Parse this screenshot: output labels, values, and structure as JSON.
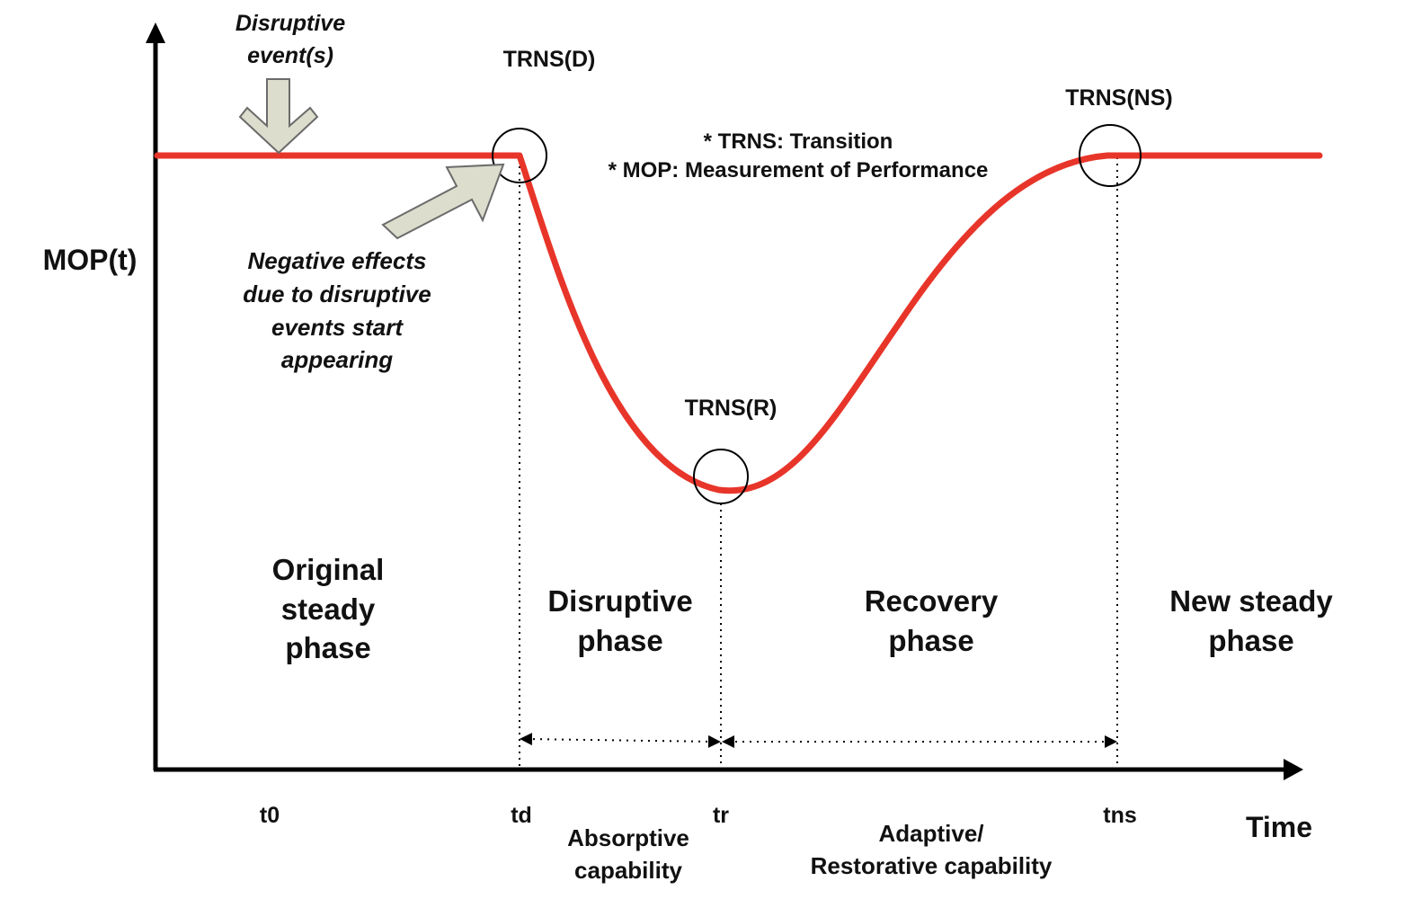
{
  "colors": {
    "curve": "#e8352a",
    "axis": "#000000",
    "arrow_fill": "#dcddcc",
    "arrow_stroke": "#6b6b6b",
    "text": "#111111"
  },
  "axes": {
    "y_label": "MOP(t)",
    "x_label": "Time",
    "ticks": [
      "t0",
      "td",
      "tr",
      "tns"
    ]
  },
  "transitions": {
    "disruption": "TRNS(D)",
    "recovery": "TRNS(R)",
    "new_steady": "TRNS(NS)"
  },
  "legend": {
    "line1": "* TRNS: Transition",
    "line2": "* MOP: Measurement of Performance"
  },
  "annotations": {
    "disruptive_events": [
      "Disruptive",
      "event(s)"
    ],
    "negative_effects": [
      "Negative effects",
      "due to disruptive",
      "events start",
      "appearing"
    ]
  },
  "phases": {
    "original": [
      "Original",
      "steady",
      "phase"
    ],
    "disruptive": [
      "Disruptive",
      "phase"
    ],
    "recovery": [
      "Recovery",
      "phase"
    ],
    "new_steady": [
      "New steady",
      "phase"
    ]
  },
  "capabilities": {
    "absorptive": [
      "Absorptive",
      "capability"
    ],
    "adaptive": [
      "Adaptive/",
      "Restorative capability"
    ]
  }
}
